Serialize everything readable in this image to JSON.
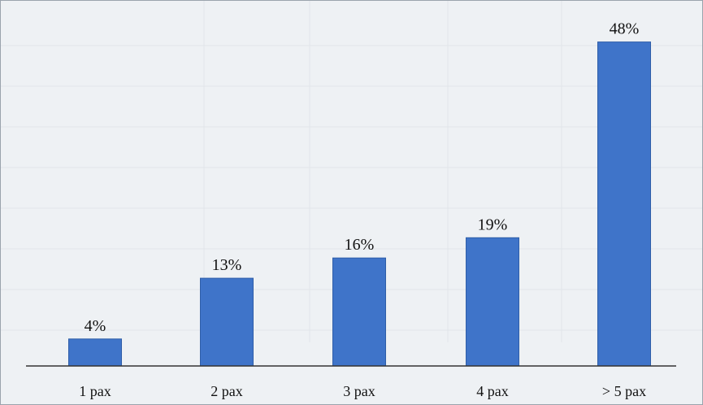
{
  "chart_data": {
    "type": "bar",
    "categories": [
      "1 pax",
      "2 pax",
      "3 pax",
      "4 pax",
      "> 5 pax"
    ],
    "values": [
      4,
      13,
      16,
      19,
      48
    ],
    "data_labels": [
      "4%",
      "13%",
      "16%",
      "19%",
      "48%"
    ],
    "title": "",
    "xlabel": "",
    "ylabel": "",
    "ylim": [
      0,
      50
    ],
    "grid": false,
    "legend": "none",
    "colors": {
      "bar": "#3f74c9",
      "bar_edge": "#2f5ea8",
      "axis": "#333333",
      "label": "#111111"
    }
  }
}
